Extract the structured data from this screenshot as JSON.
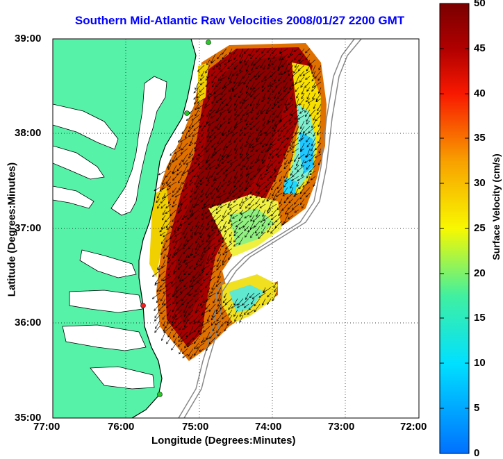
{
  "title": "Southern Mid-Atlantic Raw Velocities 2008/01/27 2200 GMT",
  "xlabel": "Longitude (Degrees:Minutes)",
  "ylabel": "Latitude (Degrees:Minutes)",
  "colorbar": {
    "label": "Surface Velocity (cm/s)",
    "ticks": [
      "0",
      "5",
      "10",
      "15",
      "20",
      "25",
      "30",
      "35",
      "40",
      "45",
      "50"
    ],
    "range": [
      0,
      50
    ]
  },
  "x_ticks": [
    "77:00",
    "76:00",
    "75:00",
    "74:00",
    "73:00",
    "72:00"
  ],
  "y_ticks": [
    "39:00",
    "38:00",
    "37:00",
    "36:00",
    "35:00"
  ],
  "colors": {
    "land": "#55f2a8",
    "coast_line": "#000000",
    "bathymetry": "#888888",
    "grid": "#000000",
    "title": "#0000ff",
    "station_green": "#22cc22",
    "station_red": "#ee2222"
  },
  "map": {
    "lon_range": [
      -77,
      -72
    ],
    "lat_range": [
      35,
      39
    ],
    "stations": [
      {
        "lon": -74.92,
        "lat": 38.98,
        "color": "green"
      },
      {
        "lon": -75.15,
        "lat": 38.21,
        "color": "green"
      },
      {
        "lon": -75.73,
        "lat": 36.18,
        "color": "red"
      },
      {
        "lon": -75.47,
        "lat": 35.28,
        "color": "green"
      }
    ]
  }
}
